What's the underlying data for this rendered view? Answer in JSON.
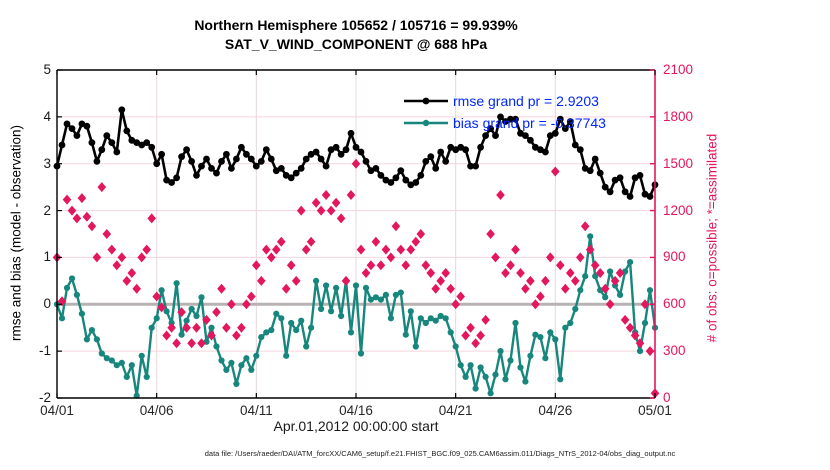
{
  "figure": {
    "title_line1": "Northern Hemisphere 105652 / 105716 = 99.939%",
    "title_line2": "SAT_V_WIND_COMPONENT @ 688 hPa",
    "xlabel": "Apr.01,2012 00:00:00 start",
    "ylabel_left": "rmse and bias (model - observation)",
    "ylabel_right": "# of obs: o=possible; *=assimilated",
    "footer": "data file: /Users/raeder/DAI/ATM_forcXX/CAM6_setup/f.e21.FHIST_BGC.f09_025.CAM6assim.011/Diags_NTrS_2012-04/obs_diag_output.nc",
    "legend": [
      {
        "label": "rmse grand pr = 2.9203"
      },
      {
        "label": "bias grand pr = -0.37743"
      }
    ]
  },
  "colors": {
    "rmse": "#000000",
    "bias": "#17867d",
    "obs": "#e3175e",
    "legend_text": "#0026ff",
    "grid_h": "#f5d4dd",
    "grid_v": "#e8d8da",
    "zero_line": "#b8b2b2",
    "axis_left": "#000000",
    "axis_right": "#e3175e",
    "tick_label_right": "#e3175e"
  },
  "chart_data": {
    "type": "line",
    "title": "Northern Hemisphere 105652 / 105716 = 99.939% — SAT_V_WIND_COMPONENT @ 688 hPa",
    "xlabel": "Apr.01,2012 00:00:00 start",
    "ylabel_left": "rmse and bias (model - observation)",
    "ylabel_right": "# of obs: o=possible; *=assimilated",
    "legend_position": "top-right, frameless",
    "grid": true,
    "time_start": "Apr.01,2012 00:00:00",
    "time_step_days": 0.25,
    "n_points": 121,
    "x_range_days": [
      0,
      30
    ],
    "y_left_range": [
      -2,
      5
    ],
    "y_right_range": [
      0,
      2100
    ],
    "y_left_ticks": [
      5,
      4,
      3,
      2,
      1,
      0,
      -1,
      -2
    ],
    "y_right_ticks": [
      0,
      300,
      600,
      900,
      1200,
      1500,
      1800,
      2100
    ],
    "x_ticks": [
      {
        "label": "04/01",
        "day": 0
      },
      {
        "label": "04/06",
        "day": 5
      },
      {
        "label": "04/11",
        "day": 10
      },
      {
        "label": "04/16",
        "day": 15
      },
      {
        "label": "04/21",
        "day": 20
      },
      {
        "label": "04/26",
        "day": 25
      },
      {
        "label": "05/01",
        "day": 30
      }
    ],
    "stats": {
      "possible": 105716,
      "used": 105652,
      "pct_used": 99.939
    },
    "series": [
      {
        "name": "rmse",
        "axis": "left",
        "grand_pr": 2.9203,
        "marker": "circle",
        "values": [
          2.95,
          3.4,
          3.85,
          3.75,
          3.6,
          3.85,
          3.8,
          3.45,
          3.05,
          3.3,
          3.6,
          3.45,
          3.25,
          4.15,
          3.7,
          3.5,
          3.45,
          3.4,
          3.45,
          3.35,
          3.0,
          3.2,
          2.65,
          2.6,
          2.7,
          3.15,
          3.3,
          3.05,
          2.75,
          2.95,
          3.1,
          2.9,
          2.8,
          3.05,
          3.2,
          2.9,
          3.1,
          3.35,
          3.2,
          3.1,
          2.95,
          3.05,
          3.3,
          3.1,
          2.85,
          2.9,
          2.75,
          2.7,
          2.8,
          2.9,
          3.1,
          3.2,
          3.25,
          3.1,
          2.95,
          3.3,
          3.35,
          3.2,
          3.3,
          3.65,
          3.35,
          3.25,
          3.05,
          2.85,
          2.9,
          2.75,
          2.65,
          2.6,
          2.7,
          2.85,
          2.65,
          2.55,
          2.6,
          2.75,
          3.05,
          3.15,
          2.9,
          3.25,
          3.05,
          3.35,
          3.3,
          3.35,
          3.3,
          2.95,
          2.95,
          3.35,
          3.6,
          3.75,
          3.6,
          4.0,
          3.9,
          3.95,
          3.95,
          3.65,
          3.6,
          3.5,
          3.35,
          3.3,
          3.25,
          3.6,
          3.65,
          3.95,
          3.75,
          3.9,
          3.4,
          3.3,
          2.9,
          2.85,
          3.1,
          2.8,
          2.5,
          2.4,
          2.65,
          2.7,
          2.4,
          2.3,
          2.7,
          2.75,
          2.35,
          2.3,
          2.55
        ]
      },
      {
        "name": "bias",
        "axis": "left",
        "grand_pr": -0.37743,
        "marker": "circle",
        "values": [
          0.0,
          -0.3,
          0.35,
          0.55,
          0.2,
          -0.2,
          -0.75,
          -0.55,
          -0.75,
          -1.05,
          -1.15,
          -1.2,
          -1.3,
          -1.25,
          -1.55,
          -1.3,
          -1.95,
          -1.1,
          -1.55,
          -0.5,
          -0.3,
          0.3,
          -0.15,
          -0.4,
          0.45,
          -0.65,
          -0.35,
          -0.1,
          -0.25,
          0.15,
          -0.8,
          -0.5,
          -0.9,
          -1.2,
          -1.4,
          -1.25,
          -1.7,
          -1.3,
          -1.15,
          -1.4,
          -1.1,
          -0.7,
          -0.6,
          -0.55,
          -0.2,
          -0.3,
          -1.1,
          -0.4,
          -0.55,
          -0.35,
          -0.9,
          -0.5,
          0.5,
          -0.1,
          0.4,
          -0.15,
          0.35,
          -0.25,
          0.5,
          -0.6,
          0.4,
          -1.05,
          0.35,
          0.1,
          0.15,
          0.1,
          0.2,
          -0.3,
          0.2,
          0.25,
          -0.65,
          -0.15,
          -0.9,
          -0.3,
          -0.4,
          -0.3,
          -0.35,
          -0.25,
          -0.3,
          -0.6,
          -0.9,
          -1.3,
          -1.55,
          -1.3,
          -1.8,
          -1.35,
          -1.55,
          -1.9,
          -1.5,
          -1.0,
          -1.6,
          -1.2,
          -0.4,
          -1.35,
          -1.65,
          -1.1,
          -0.65,
          -0.7,
          -1.15,
          -0.6,
          -0.75,
          -1.6,
          -0.5,
          -0.4,
          -0.1,
          0.3,
          0.6,
          1.45,
          0.6,
          0.3,
          0.15,
          0.7,
          0.4,
          0.2,
          0.7,
          0.9,
          -0.6,
          -1.0,
          -0.4,
          0.3,
          -0.5
        ]
      },
      {
        "name": "num_obs (o=possible, *=assimilated, overlapping)",
        "axis": "right",
        "marker": "diamond",
        "values": [
          900,
          620,
          1270,
          1200,
          1150,
          1280,
          1160,
          1100,
          900,
          1350,
          1050,
          950,
          850,
          900,
          750,
          800,
          700,
          900,
          950,
          1150,
          650,
          580,
          400,
          450,
          350,
          550,
          450,
          350,
          450,
          350,
          500,
          400,
          550,
          700,
          450,
          600,
          400,
          450,
          600,
          650,
          850,
          750,
          950,
          900,
          950,
          1000,
          700,
          850,
          750,
          1200,
          950,
          1000,
          1250,
          1200,
          1300,
          1200,
          1250,
          1150,
          750,
          1300,
          1500,
          950,
          800,
          850,
          1000,
          850,
          950,
          900,
          1100,
          950,
          850,
          950,
          1000,
          1050,
          850,
          800,
          700,
          750,
          800,
          700,
          600,
          650,
          400,
          450,
          350,
          400,
          500,
          1050,
          900,
          1300,
          800,
          850,
          950,
          800,
          700,
          750,
          600,
          650,
          750,
          900,
          1450,
          850,
          700,
          800,
          750,
          900,
          1100,
          950,
          850,
          800,
          700,
          600,
          750,
          800,
          500,
          450,
          400,
          350,
          600,
          300,
          30
        ]
      }
    ]
  }
}
